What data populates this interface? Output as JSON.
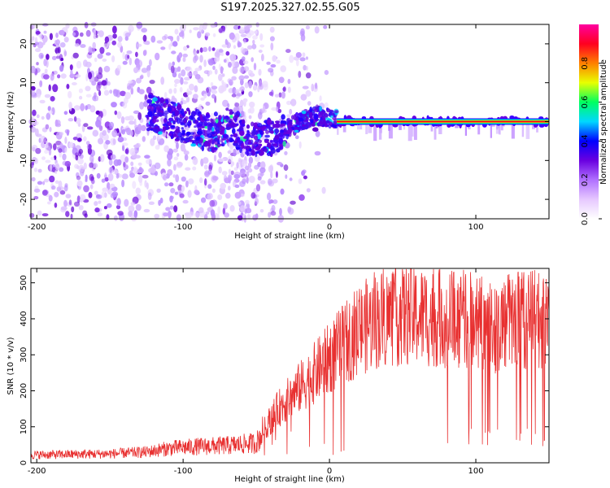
{
  "title": "S197.2025.327.02.55.G05",
  "chart_data": [
    {
      "type": "heatmap",
      "xlabel": "Height of straight line (km)",
      "ylabel": "Frequency (Hz)",
      "xlim": [
        -204,
        150
      ],
      "ylim": [
        -25,
        25
      ],
      "xticks": [
        -200,
        -100,
        0,
        100
      ],
      "yticks": [
        -20,
        -10,
        0,
        10,
        20
      ],
      "colorbar": {
        "label": "Normalized spectral amplitude",
        "ticks": [
          0.0,
          0.2,
          0.4,
          0.6,
          0.8
        ],
        "range": [
          0,
          1
        ],
        "colors": [
          "#ffffff",
          "#e6c8ff",
          "#b070ff",
          "#6a00e0",
          "#0000ff",
          "#00d8ff",
          "#00ff60",
          "#e8ff00",
          "#ff8000",
          "#ff0020",
          "#ff00a0"
        ]
      },
      "features": {
        "scatter_region_x": [
          -204,
          -60
        ],
        "scatter_fade_x": [
          -60,
          0
        ],
        "line_frequency_hz": 0.0,
        "line_start_x": 5,
        "curve_points": [
          {
            "x": -125,
            "f": 2.5
          },
          {
            "x": -110,
            "f": 1
          },
          {
            "x": -100,
            "f": -1
          },
          {
            "x": -90,
            "f": -2
          },
          {
            "x": -80,
            "f": -3
          },
          {
            "x": -70,
            "f": -1
          },
          {
            "x": -60,
            "f": -3
          },
          {
            "x": -50,
            "f": -5
          },
          {
            "x": -40,
            "f": -4
          },
          {
            "x": -30,
            "f": -2
          },
          {
            "x": -20,
            "f": 0
          },
          {
            "x": -10,
            "f": 1.5
          },
          {
            "x": 0,
            "f": 1
          },
          {
            "x": 5,
            "f": 0.5
          }
        ]
      }
    },
    {
      "type": "line",
      "xlabel": "Height of straight line (km)",
      "ylabel": "SNR (10 * v/v)",
      "xlim": [
        -204,
        150
      ],
      "ylim": [
        0,
        540
      ],
      "xticks": [
        -200,
        -100,
        0,
        100
      ],
      "yticks": [
        0,
        100,
        200,
        300,
        400,
        500
      ],
      "color": "#e83030",
      "profile": [
        {
          "x": -204,
          "y": 22
        },
        {
          "x": -150,
          "y": 25
        },
        {
          "x": -125,
          "y": 30
        },
        {
          "x": -110,
          "y": 40
        },
        {
          "x": -90,
          "y": 45
        },
        {
          "x": -70,
          "y": 48
        },
        {
          "x": -50,
          "y": 55
        },
        {
          "x": -42,
          "y": 110
        },
        {
          "x": -35,
          "y": 150
        },
        {
          "x": -25,
          "y": 190
        },
        {
          "x": -15,
          "y": 230
        },
        {
          "x": -5,
          "y": 270
        },
        {
          "x": 5,
          "y": 310
        },
        {
          "x": 15,
          "y": 350
        },
        {
          "x": 25,
          "y": 380
        },
        {
          "x": 35,
          "y": 400
        },
        {
          "x": 50,
          "y": 410
        },
        {
          "x": 70,
          "y": 405
        },
        {
          "x": 90,
          "y": 400
        },
        {
          "x": 100,
          "y": 395
        },
        {
          "x": 112,
          "y": 380
        },
        {
          "x": 120,
          "y": 390
        },
        {
          "x": 135,
          "y": 400
        },
        {
          "x": 150,
          "y": 390
        }
      ]
    }
  ]
}
